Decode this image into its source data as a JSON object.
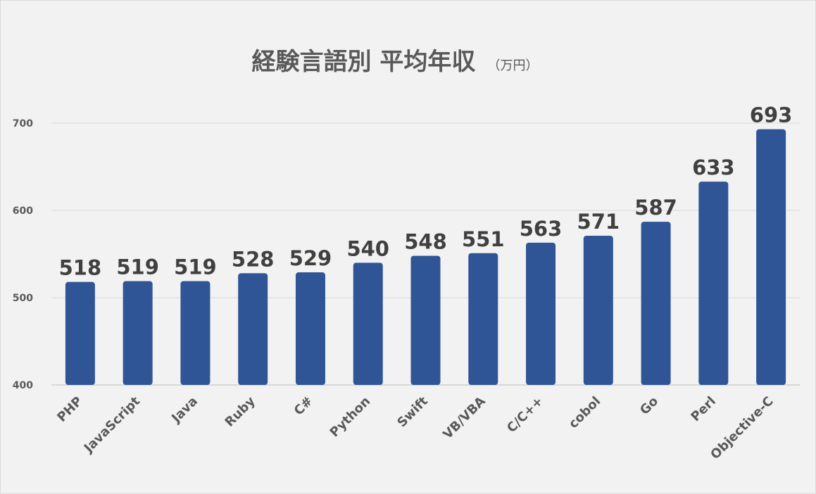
{
  "chart_data": {
    "type": "bar",
    "title": "経験言語別 平均年収",
    "title_unit": "（万円）",
    "xlabel": "",
    "ylabel": "",
    "categories": [
      "PHP",
      "JavaScript",
      "Java",
      "Ruby",
      "C#",
      "Python",
      "Swift",
      "VB/VBA",
      "C/C++",
      "cobol",
      "Go",
      "Perl",
      "Objective-C"
    ],
    "values": [
      518,
      519,
      519,
      528,
      529,
      540,
      548,
      551,
      563,
      571,
      587,
      633,
      693
    ],
    "data_labels": [
      "518",
      "519",
      "519",
      "528",
      "529",
      "540",
      "548",
      "551",
      "563",
      "571",
      "587",
      "633",
      "693"
    ],
    "ylim": [
      400,
      700
    ],
    "yticks": [
      400,
      500,
      600,
      700
    ],
    "ytick_labels": [
      "400",
      "500",
      "600",
      "700"
    ],
    "grid": true,
    "legend": "none",
    "bar_color": "#2f5597"
  }
}
